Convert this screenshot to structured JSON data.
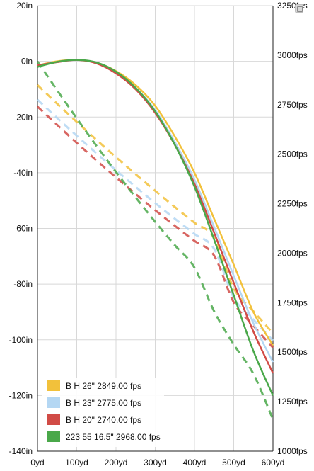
{
  "chart_data": {
    "type": "line",
    "title": "",
    "xlabel": "",
    "ylabel_left": "",
    "ylabel_right": "",
    "x_ticks": [
      "0yd",
      "100yd",
      "200yd",
      "300yd",
      "400yd",
      "500yd",
      "600yd"
    ],
    "y_left_ticks": [
      "20in",
      "0in",
      "-20in",
      "-40in",
      "-60in",
      "-80in",
      "-100in",
      "-120in",
      "-140in"
    ],
    "y_right_ticks": [
      "3250fps",
      "3000fps",
      "2750fps",
      "2500fps",
      "2250fps",
      "2000fps",
      "1750fps",
      "1500fps",
      "1250fps",
      "1000fps"
    ],
    "xlim": [
      0,
      600
    ],
    "ylim_left": [
      -140,
      20
    ],
    "ylim_right": [
      1000,
      3250
    ],
    "grid": true,
    "legend_position": "bottom-left",
    "x": [
      0,
      50,
      100,
      150,
      200,
      250,
      300,
      350,
      400,
      450,
      500,
      550,
      600
    ],
    "series": [
      {
        "name": "B H 26\" 2849.00 fps",
        "color": "#f2c13b",
        "drop_in": [
          -1.5,
          0.0,
          0.5,
          -0.5,
          -3.5,
          -8.5,
          -16.0,
          -27.0,
          -40.0,
          -56.5,
          -73.0,
          -90.0,
          -102.0
        ],
        "velocity_fps": [
          2849,
          2755,
          2663,
          2573,
          2485,
          2399,
          2315,
          2233,
          2154,
          2077,
          1823,
          1707,
          1596
        ]
      },
      {
        "name": "B H 23\" 2775.00 fps",
        "color": "#b4d7f3",
        "drop_in": [
          -1.5,
          -0.3,
          0.5,
          -0.6,
          -4.0,
          -9.5,
          -17.5,
          -29.0,
          -42.5,
          -59.5,
          -77.0,
          -94.0,
          -108.0
        ],
        "velocity_fps": [
          2775,
          2683,
          2593,
          2505,
          2419,
          2335,
          2253,
          2174,
          2097,
          2022,
          1776,
          1665,
          1559
        ]
      },
      {
        "name": "B H 20\" 2740.00 fps",
        "color": "#d14b46",
        "drop_in": [
          -1.5,
          -0.3,
          0.5,
          -0.7,
          -4.3,
          -10.0,
          -18.5,
          -30.0,
          -44.0,
          -61.5,
          -79.5,
          -97.0,
          -112.0
        ],
        "velocity_fps": [
          2740,
          2648,
          2557,
          2469,
          2383,
          2299,
          2217,
          2138,
          2062,
          1988,
          1752,
          1634,
          1523
        ]
      },
      {
        "name": "223 55 16.5\" 2968.00 fps",
        "color": "#4aa84a",
        "drop_in": [
          -2.0,
          -0.2,
          0.5,
          -0.4,
          -3.7,
          -9.5,
          -18.0,
          -30.0,
          -45.0,
          -64.0,
          -84.0,
          -104.0,
          -120.0
        ],
        "velocity_fps": [
          2968,
          2823,
          2681,
          2543,
          2410,
          2282,
          2158,
          2040,
          1927,
          1707,
          1539,
          1391,
          1160
        ]
      }
    ]
  }
}
